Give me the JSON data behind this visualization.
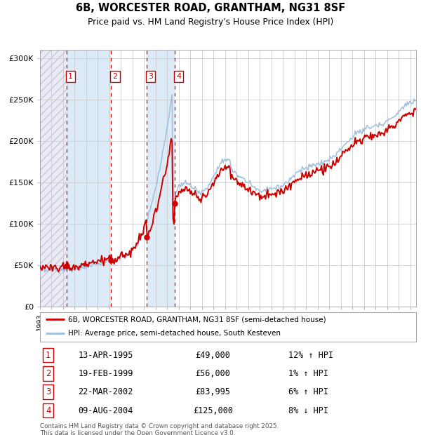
{
  "title_line1": "6B, WORCESTER ROAD, GRANTHAM, NG31 8SF",
  "title_line2": "Price paid vs. HM Land Registry's House Price Index (HPI)",
  "legend_line1": "6B, WORCESTER ROAD, GRANTHAM, NG31 8SF (semi-detached house)",
  "legend_line2": "HPI: Average price, semi-detached house, South Kesteven",
  "sale_color": "#cc0000",
  "hpi_color": "#a0bfe0",
  "table_rows": [
    {
      "num": "1",
      "date": "13-APR-1995",
      "price": "£49,000",
      "change": "12% ↑ HPI"
    },
    {
      "num": "2",
      "date": "19-FEB-1999",
      "price": "£56,000",
      "change": "1% ↑ HPI"
    },
    {
      "num": "3",
      "date": "22-MAR-2002",
      "price": "£83,995",
      "change": "6% ↑ HPI"
    },
    {
      "num": "4",
      "date": "09-AUG-2004",
      "price": "£125,000",
      "change": "8% ↓ HPI"
    }
  ],
  "footnote": "Contains HM Land Registry data © Crown copyright and database right 2025.\nThis data is licensed under the Open Government Licence v3.0.",
  "ytick_labels": [
    "£0",
    "£50K",
    "£100K",
    "£150K",
    "£200K",
    "£250K",
    "£300K"
  ],
  "sale_years": [
    1995.292,
    1999.125,
    2002.208,
    2004.625
  ],
  "sale_prices": [
    49000,
    56000,
    83995,
    125000
  ],
  "sale_labels": [
    "1",
    "2",
    "3",
    "4"
  ]
}
